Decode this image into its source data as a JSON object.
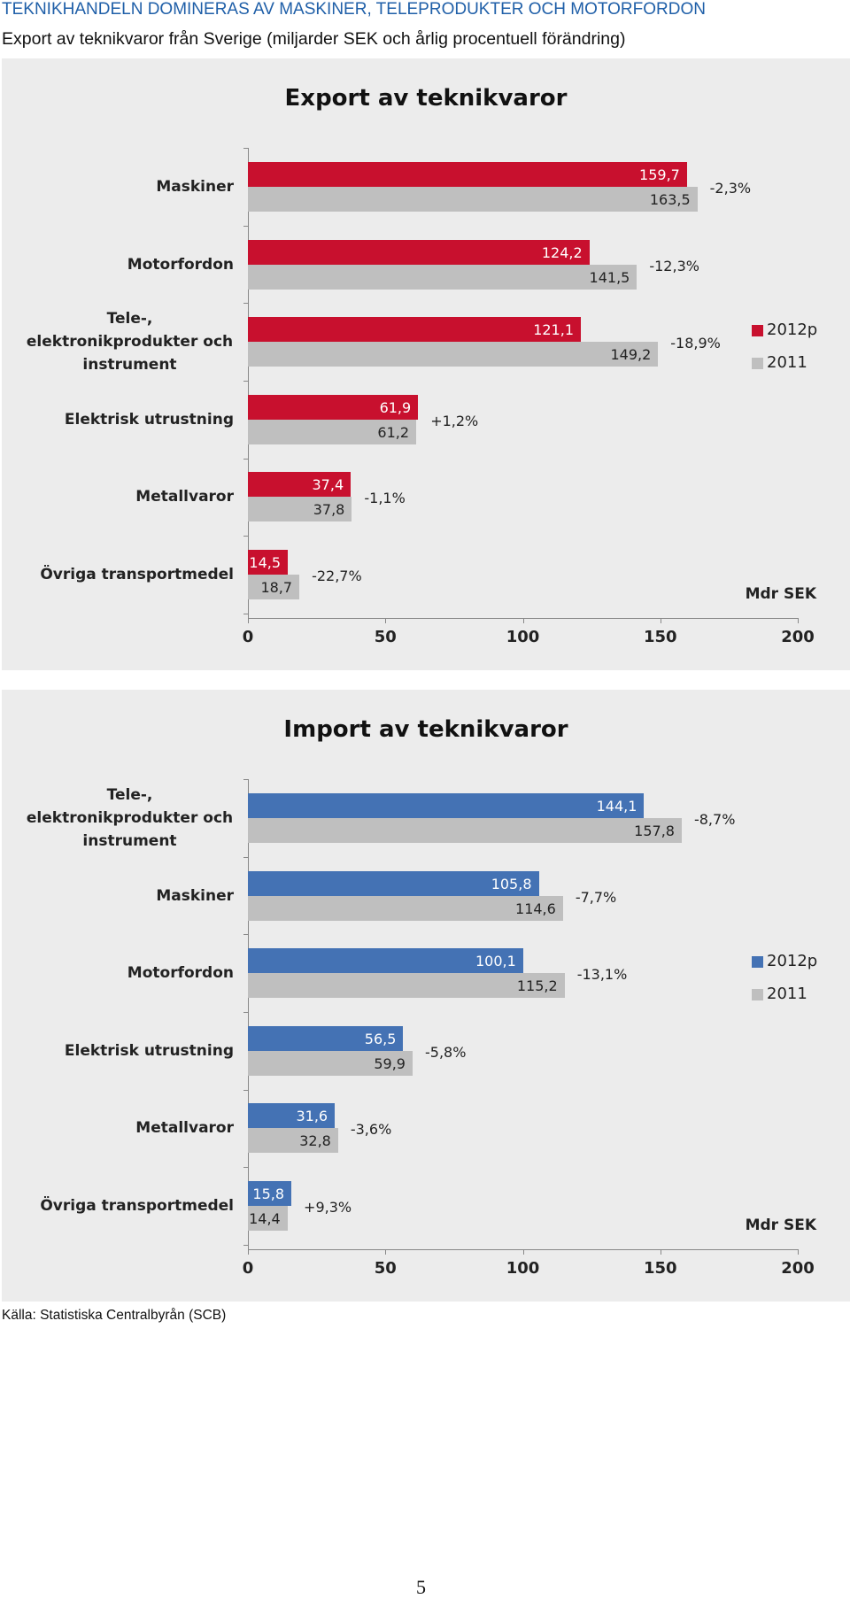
{
  "title": "TEKNIKHANDELN DOMINERAS AV MASKINER, TELEPRODUKTER OCH MOTORFORDON",
  "subtitle": "Export av teknikvaror från Sverige (miljarder SEK och årlig procentuell förändring)",
  "source": "Källa: Statistiska Centralbyrån (SCB)",
  "page_number": 5,
  "chart_data": [
    {
      "type": "barh",
      "title": "Export av teknikvaror",
      "categories": [
        "Maskiner",
        "Motorfordon",
        "Tele-, elektronikprodukter och instrument",
        "Elektrisk utrustning",
        "Metallvaror",
        "Övriga transportmedel"
      ],
      "series": [
        {
          "name": "2012p",
          "color": "#c8102e",
          "values": [
            159.7,
            124.2,
            121.1,
            61.9,
            37.4,
            14.5
          ],
          "value_labels": [
            "159,7",
            "124,2",
            "121,1",
            "61,9",
            "37,4",
            "14,5"
          ]
        },
        {
          "name": "2011",
          "color": "#bfbfbf",
          "values": [
            163.5,
            141.5,
            149.2,
            61.2,
            37.8,
            18.7
          ],
          "value_labels": [
            "163,5",
            "141,5",
            "149,2",
            "61,2",
            "37,8",
            "18,7"
          ]
        }
      ],
      "changes": [
        "-2,3%",
        "-12,3%",
        "-18,9%",
        "+1,2%",
        "-1,1%",
        "-22,7%"
      ],
      "x_unit_label": "Mdr SEK",
      "xlim": [
        0,
        200
      ],
      "xticks": [
        0,
        50,
        100,
        150,
        200
      ],
      "legend": "right"
    },
    {
      "type": "barh",
      "title": "Import av teknikvaror",
      "categories": [
        "Tele-, elektronikprodukter och instrument",
        "Maskiner",
        "Motorfordon",
        "Elektrisk utrustning",
        "Metallvaror",
        "Övriga transportmedel"
      ],
      "series": [
        {
          "name": "2012p",
          "color": "#4472b4",
          "values": [
            144.1,
            105.8,
            100.1,
            56.5,
            31.6,
            15.8
          ],
          "value_labels": [
            "144,1",
            "105,8",
            "100,1",
            "56,5",
            "31,6",
            "15,8"
          ]
        },
        {
          "name": "2011",
          "color": "#bfbfbf",
          "values": [
            157.8,
            114.6,
            115.2,
            59.9,
            32.8,
            14.4
          ],
          "value_labels": [
            "157,8",
            "114,6",
            "115,2",
            "59,9",
            "32,8",
            "14,4"
          ]
        }
      ],
      "changes": [
        "-8,7%",
        "-7,7%",
        "-13,1%",
        "-5,8%",
        "-3,6%",
        "+9,3%"
      ],
      "x_unit_label": "Mdr SEK",
      "xlim": [
        0,
        200
      ],
      "xticks": [
        0,
        50,
        100,
        150,
        200
      ],
      "legend": "right"
    }
  ]
}
